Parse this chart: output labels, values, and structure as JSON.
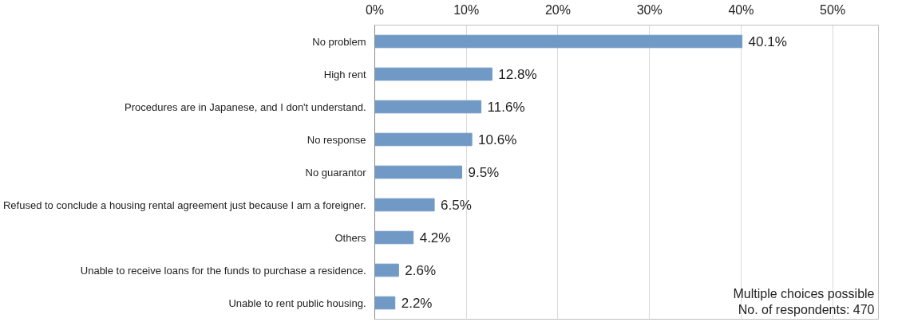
{
  "chart_data": {
    "type": "bar",
    "orientation": "horizontal",
    "categories": [
      "No problem",
      "High rent",
      "Procedures are in Japanese, and I don't understand.",
      "No response",
      "No guarantor",
      "Refused to conclude a housing rental agreement just because I am a foreigner.",
      "Others",
      "Unable to receive loans for the funds to purchase a residence.",
      "Unable to rent public housing."
    ],
    "values": [
      40.1,
      12.8,
      11.6,
      10.6,
      9.5,
      6.5,
      4.2,
      2.6,
      2.2
    ],
    "value_labels": [
      "40.1%",
      "12.8%",
      "11.6%",
      "10.6%",
      "9.5%",
      "6.5%",
      "4.2%",
      "2.6%",
      "2.2%"
    ],
    "color": "#7199c6",
    "xlim": [
      0,
      55
    ],
    "xticks": [
      {
        "value": 0,
        "label": "0%"
      },
      {
        "value": 10,
        "label": "10%"
      },
      {
        "value": 20,
        "label": "20%"
      },
      {
        "value": 30,
        "label": "30%"
      },
      {
        "value": 40,
        "label": "40%"
      },
      {
        "value": 50,
        "label": "50%"
      }
    ],
    "grid": "x",
    "annotations": [
      "Multiple choices possible",
      "No. of respondents: 470"
    ]
  }
}
